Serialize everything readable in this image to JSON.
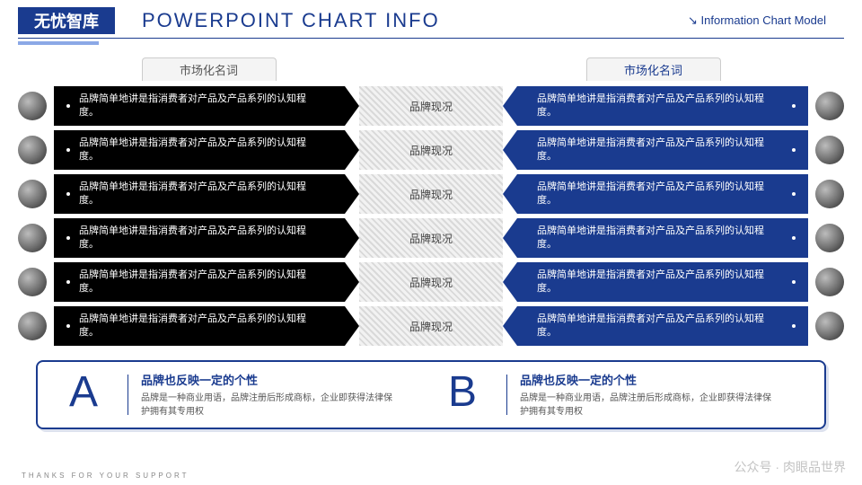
{
  "brand": "无忧智库",
  "title": "POWERPOINT CHART INFO",
  "subtitle": "Information Chart Model",
  "colors": {
    "primary": "#1a3b8f",
    "black": "#000000",
    "accent": "#8ba8e6",
    "hatch_a": "#d9d9d9",
    "hatch_b": "#f2f2f2",
    "background": "#ffffff"
  },
  "column_headers": {
    "left": "市场化名词",
    "right": "市场化名词"
  },
  "rows": [
    {
      "left": "品牌简单地讲是指消费者对产品及产品系列的认知程度。",
      "mid": "品牌现况",
      "right": "品牌简单地讲是指消费者对产品及产品系列的认知程度。"
    },
    {
      "left": "品牌简单地讲是指消费者对产品及产品系列的认知程度。",
      "mid": "品牌现况",
      "right": "品牌简单地讲是指消费者对产品及产品系列的认知程度。"
    },
    {
      "left": "品牌简单地讲是指消费者对产品及产品系列的认知程度。",
      "mid": "品牌现况",
      "right": "品牌简单地讲是指消费者对产品及产品系列的认知程度。"
    },
    {
      "left": "品牌简单地讲是指消费者对产品及产品系列的认知程度。",
      "mid": "品牌现况",
      "right": "品牌简单地讲是指消费者对产品及产品系列的认知程度。"
    },
    {
      "left": "品牌简单地讲是指消费者对产品及产品系列的认知程度。",
      "mid": "品牌现况",
      "right": "品牌简单地讲是指消费者对产品及产品系列的认知程度。"
    },
    {
      "left": "品牌简单地讲是指消费者对产品及产品系列的认知程度。",
      "mid": "品牌现况",
      "right": "品牌简单地讲是指消费者对产品及产品系列的认知程度。"
    }
  ],
  "bottom": {
    "a_letter": "A",
    "a_title": "品牌也反映一定的个性",
    "a_desc": "品牌是一种商业用语，品牌注册后形成商标，企业即获得法律保护拥有其专用权",
    "b_letter": "B",
    "b_title": "品牌也反映一定的个性",
    "b_desc": "品牌是一种商业用语，品牌注册后形成商标，企业即获得法律保护拥有其专用权"
  },
  "footer": "THANKS FOR YOUR SUPPORT",
  "watermark": "公众号 · 肉眼品世界"
}
